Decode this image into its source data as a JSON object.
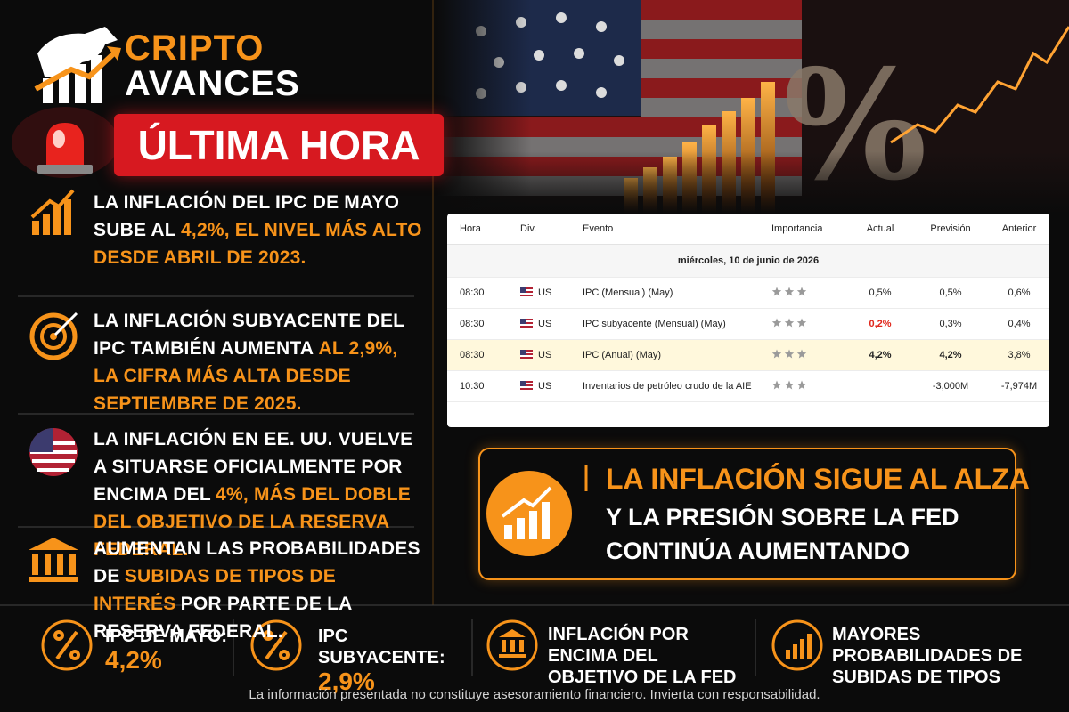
{
  "brand": {
    "line1": "CRIPTO",
    "line2": "AVANCES"
  },
  "badge": "ÚLTIMA HORA",
  "points": [
    {
      "segments": [
        {
          "text": "LA INFLACIÓN DEL IPC DE MAYO SUBE AL",
          "color": "#ffffff"
        },
        {
          "text": "4,2%, EL NIVEL MÁS ALTO DESDE ABRIL DE 2023.",
          "color": "#f7931a"
        }
      ]
    },
    {
      "segments": [
        {
          "text": "LA INFLACIÓN SUBYACENTE DEL IPC TAMBIÉN AUMENTA",
          "color": "#ffffff"
        },
        {
          "text": "AL 2,9%, LA CIFRA MÁS ALTA DESDE SEPTIEMBRE DE 2025.",
          "color": "#f7931a"
        }
      ]
    },
    {
      "segments": [
        {
          "text": "LA INFLACIÓN EN EE. UU. VUELVE A SITUARSE OFICIALMENTE POR ENCIMA DEL",
          "color": "#ffffff"
        },
        {
          "text": "4%, MÁS DEL DOBLE DEL OBJETIVO DE LA RESERVA FEDERAL.",
          "color": "#f7931a"
        }
      ]
    },
    {
      "segments": [
        {
          "text": "AUMENTAN LAS PROBABILIDADES DE",
          "color": "#ffffff"
        },
        {
          "text": "SUBIDAS DE TIPOS DE INTERÉS",
          "color": "#f7931a"
        },
        {
          "text": "POR PARTE DE LA RESERVA FEDERAL.",
          "color": "#ffffff"
        }
      ]
    }
  ],
  "table": {
    "columns": [
      "Hora",
      "Div.",
      "Evento",
      "Importancia",
      "Actual",
      "Previsión",
      "Anterior"
    ],
    "date": "miércoles, 10 de junio de 2026",
    "rows": [
      {
        "time": "08:30",
        "currency": "US",
        "event": "IPC (Mensual) (May)",
        "importance": 3,
        "actual": "0,5%",
        "forecast": "0,5%",
        "previous": "0,6%",
        "actual_color": "#222222",
        "background": "#ffffff",
        "bold": false
      },
      {
        "time": "08:30",
        "currency": "US",
        "event": "IPC subyacente (Mensual) (May)",
        "importance": 3,
        "actual": "0,2%",
        "forecast": "0,3%",
        "previous": "0,4%",
        "actual_color": "#e0261b",
        "background": "#ffffff",
        "bold": false
      },
      {
        "time": "08:30",
        "currency": "US",
        "event": "IPC (Anual) (May)",
        "importance": 3,
        "actual": "4,2%",
        "forecast": "4,2%",
        "previous": "3,8%",
        "actual_color": "#222222",
        "background": "#fff8dc",
        "bold": true
      },
      {
        "time": "10:30",
        "currency": "US",
        "event": "Inventarios de petróleo crudo de la AIE",
        "importance": 3,
        "actual": null,
        "forecast": "-3,000M",
        "previous": "-7,974M",
        "actual_color": "#222222",
        "background": "#ffffff",
        "bold": false
      }
    ]
  },
  "callout": {
    "headline": "LA INFLACIÓN SIGUE AL ALZA",
    "line2": "Y LA PRESIÓN SOBRE LA FED",
    "line3": "CONTINÚA AUMENTANDO"
  },
  "stats": [
    {
      "label": "IPC DE MAYO:",
      "value": "4,2%"
    },
    {
      "label": "IPC SUBYACENTE:",
      "value": "2,9%"
    },
    {
      "label": "INFLACIÓN POR ENCIMA DEL OBJETIVO DE LA FED"
    },
    {
      "label": "MAYORES PROBABILIDADES DE SUBIDAS DE TIPOS"
    }
  ],
  "disclaimer": "La información presentada no constituye asesoramiento financiero. Invierta con responsabilidad."
}
